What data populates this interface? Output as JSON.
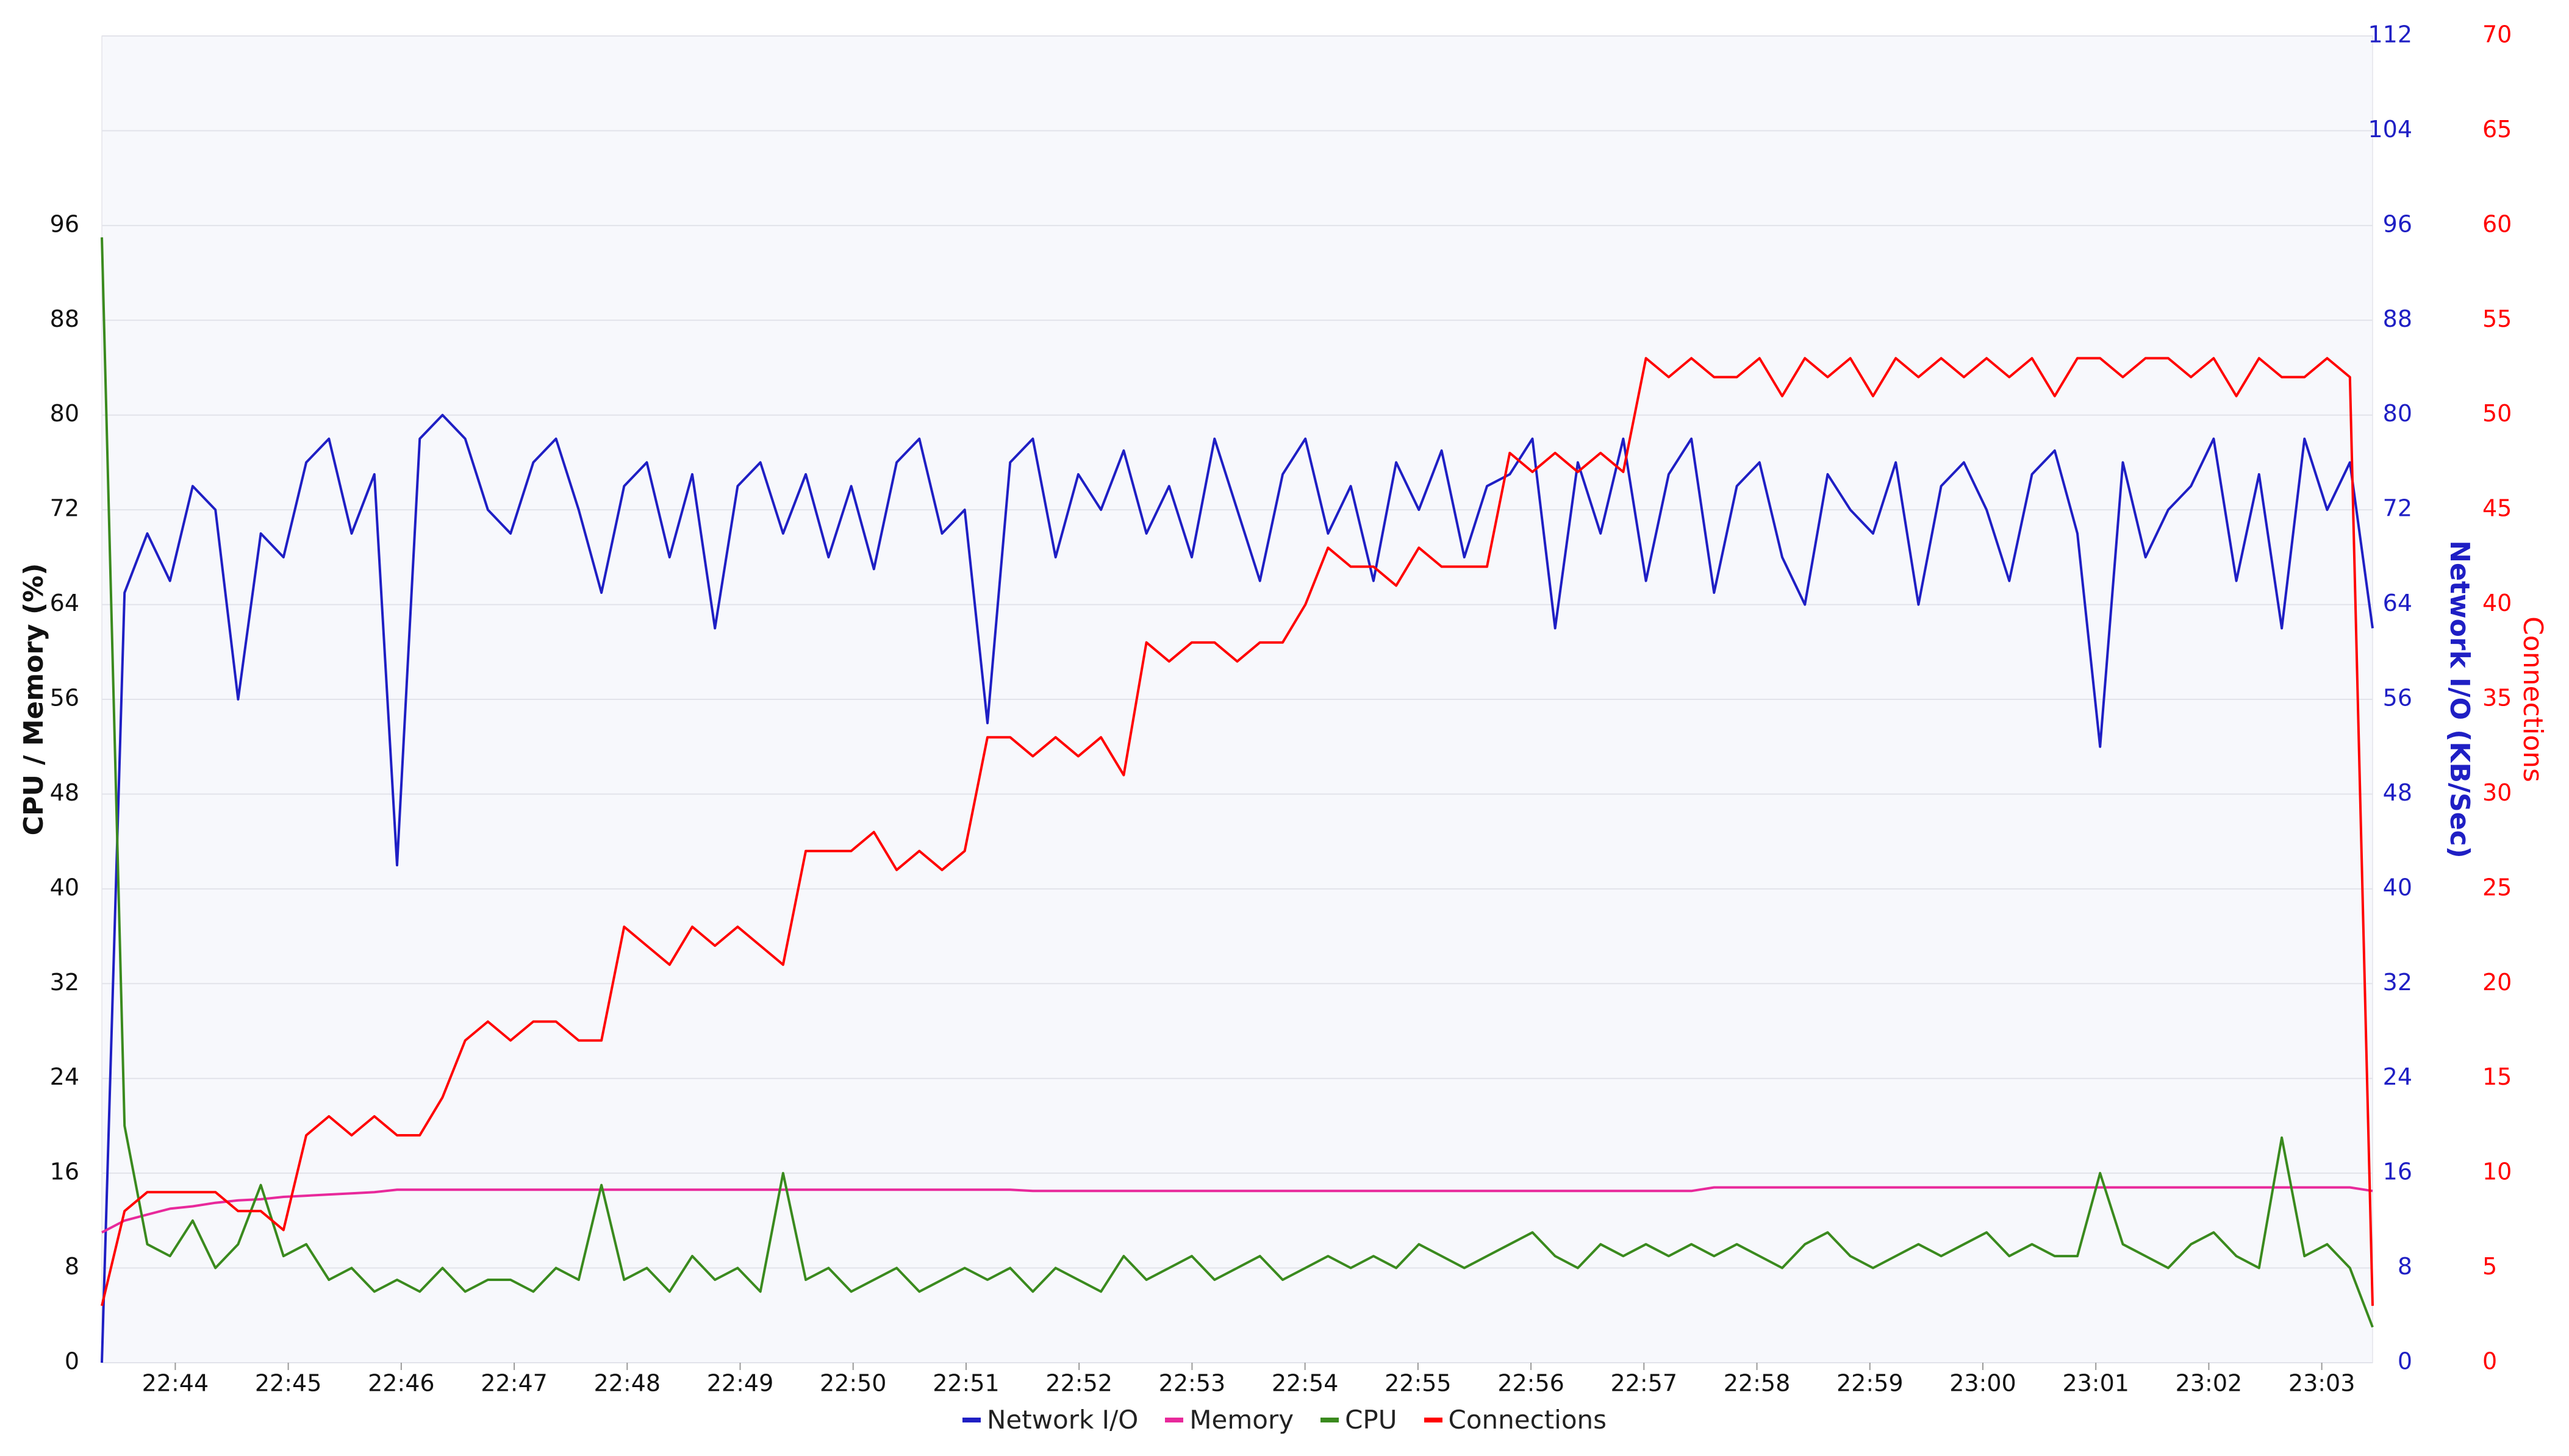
{
  "chart_data": {
    "type": "line",
    "y_label": "CPU / Memory (%)",
    "y2_label": "Network I/O (KB/Sec)",
    "y3_label": "Connections",
    "xlim": [
      1363.35,
      1383.45
    ],
    "xticks": [
      {
        "value": 1364,
        "label": "22:44"
      },
      {
        "value": 1365,
        "label": "22:45"
      },
      {
        "value": 1366,
        "label": "22:46"
      },
      {
        "value": 1367,
        "label": "22:47"
      },
      {
        "value": 1368,
        "label": "22:48"
      },
      {
        "value": 1369,
        "label": "22:49"
      },
      {
        "value": 1370,
        "label": "22:50"
      },
      {
        "value": 1371,
        "label": "22:51"
      },
      {
        "value": 1372,
        "label": "22:52"
      },
      {
        "value": 1373,
        "label": "22:53"
      },
      {
        "value": 1374,
        "label": "22:54"
      },
      {
        "value": 1375,
        "label": "22:55"
      },
      {
        "value": 1376,
        "label": "22:56"
      },
      {
        "value": 1377,
        "label": "22:57"
      },
      {
        "value": 1378,
        "label": "22:58"
      },
      {
        "value": 1379,
        "label": "22:59"
      },
      {
        "value": 1380,
        "label": "23:00"
      },
      {
        "value": 1381,
        "label": "23:01"
      },
      {
        "value": 1382,
        "label": "23:02"
      },
      {
        "value": 1383,
        "label": "23:03"
      }
    ],
    "ylim": [
      0,
      112
    ],
    "yticks": [
      0,
      8,
      16,
      24,
      32,
      40,
      48,
      56,
      64,
      72,
      80,
      88,
      96
    ],
    "y2lim": [
      0,
      112
    ],
    "y2ticks": [
      0,
      8,
      16,
      24,
      32,
      40,
      48,
      56,
      64,
      72,
      80,
      88,
      96,
      104,
      112
    ],
    "y3lim": [
      0,
      70
    ],
    "y3ticks": [
      0,
      5,
      10,
      15,
      20,
      25,
      30,
      35,
      40,
      45,
      50,
      55,
      60,
      65,
      70
    ],
    "grid": true,
    "legend": "bottom",
    "series": [
      {
        "name": "Network I/O",
        "color": "#1f1fc4",
        "axis": "y2",
        "values": [
          0,
          65,
          70,
          66,
          74,
          72,
          56,
          70,
          68,
          76,
          78,
          70,
          75,
          42,
          78,
          80,
          78,
          72,
          70,
          76,
          78,
          72,
          65,
          74,
          76,
          68,
          75,
          62,
          74,
          76,
          70,
          75,
          68,
          74,
          67,
          76,
          78,
          70,
          72,
          54,
          76,
          78,
          68,
          75,
          72,
          77,
          70,
          74,
          68,
          78,
          72,
          66,
          75,
          78,
          70,
          74,
          66,
          76,
          72,
          77,
          68,
          74,
          75,
          78,
          62,
          76,
          70,
          78,
          66,
          75,
          78,
          65,
          74,
          76,
          68,
          64,
          75,
          72,
          70,
          76,
          64,
          74,
          76,
          72,
          66,
          75,
          77,
          70,
          52,
          76,
          68,
          72,
          74,
          78,
          66,
          75,
          62,
          78,
          72,
          76,
          62
        ]
      },
      {
        "name": "Memory",
        "color": "#e8299b",
        "axis": "y",
        "values": [
          11,
          12,
          12.5,
          13,
          13.2,
          13.5,
          13.7,
          13.8,
          14,
          14.1,
          14.2,
          14.3,
          14.4,
          14.6,
          14.6,
          14.6,
          14.6,
          14.6,
          14.6,
          14.6,
          14.6,
          14.6,
          14.6,
          14.6,
          14.6,
          14.6,
          14.6,
          14.6,
          14.6,
          14.6,
          14.6,
          14.6,
          14.6,
          14.6,
          14.6,
          14.6,
          14.6,
          14.6,
          14.6,
          14.6,
          14.6,
          14.5,
          14.5,
          14.5,
          14.5,
          14.5,
          14.5,
          14.5,
          14.5,
          14.5,
          14.5,
          14.5,
          14.5,
          14.5,
          14.5,
          14.5,
          14.5,
          14.5,
          14.5,
          14.5,
          14.5,
          14.5,
          14.5,
          14.5,
          14.5,
          14.5,
          14.5,
          14.5,
          14.5,
          14.5,
          14.5,
          14.8,
          14.8,
          14.8,
          14.8,
          14.8,
          14.8,
          14.8,
          14.8,
          14.8,
          14.8,
          14.8,
          14.8,
          14.8,
          14.8,
          14.8,
          14.8,
          14.8,
          14.8,
          14.8,
          14.8,
          14.8,
          14.8,
          14.8,
          14.8,
          14.8,
          14.8,
          14.8,
          14.8,
          14.8,
          14.5
        ]
      },
      {
        "name": "CPU",
        "color": "#3a8a1e",
        "axis": "y",
        "values": [
          95,
          20,
          10,
          9,
          12,
          8,
          10,
          15,
          9,
          10,
          7,
          8,
          6,
          7,
          6,
          8,
          6,
          7,
          7,
          6,
          8,
          7,
          15,
          7,
          8,
          6,
          9,
          7,
          8,
          6,
          16,
          7,
          8,
          6,
          7,
          8,
          6,
          7,
          8,
          7,
          8,
          6,
          8,
          7,
          6,
          9,
          7,
          8,
          9,
          7,
          8,
          9,
          7,
          8,
          9,
          8,
          9,
          8,
          10,
          9,
          8,
          9,
          10,
          11,
          9,
          8,
          10,
          9,
          10,
          9,
          10,
          9,
          10,
          9,
          8,
          10,
          11,
          9,
          8,
          9,
          10,
          9,
          10,
          11,
          9,
          10,
          9,
          9,
          16,
          10,
          9,
          8,
          10,
          11,
          9,
          8,
          19,
          9,
          10,
          8,
          3
        ]
      },
      {
        "name": "Connections",
        "color": "#ff0000",
        "axis": "y3",
        "values": [
          3,
          8,
          9,
          9,
          9,
          9,
          8,
          8,
          7,
          12,
          13,
          12,
          13,
          12,
          12,
          14,
          17,
          18,
          17,
          18,
          18,
          17,
          17,
          23,
          22,
          21,
          23,
          22,
          23,
          22,
          21,
          27,
          27,
          27,
          28,
          26,
          27,
          26,
          27,
          33,
          33,
          32,
          33,
          32,
          33,
          31,
          38,
          37,
          38,
          38,
          37,
          38,
          38,
          40,
          43,
          42,
          42,
          41,
          43,
          42,
          42,
          42,
          48,
          47,
          48,
          47,
          48,
          47,
          53,
          52,
          53,
          52,
          52,
          53,
          51,
          53,
          52,
          53,
          51,
          53,
          52,
          53,
          52,
          53,
          52,
          53,
          51,
          53,
          53,
          52,
          53,
          53,
          52,
          53,
          51,
          53,
          52,
          52,
          53,
          52,
          3
        ]
      }
    ]
  }
}
